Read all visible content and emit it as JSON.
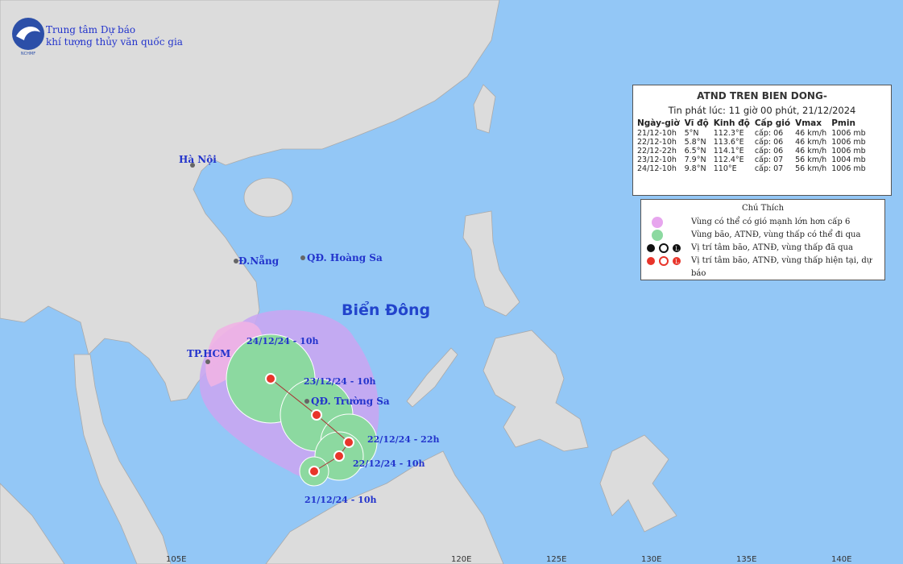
{
  "header": {
    "org_line1": "Trung tâm Dự báo",
    "org_line2": "khí tượng thủy văn quốc gia",
    "logo": "NCHMF"
  },
  "bulletin": {
    "title": "ATND TREN BIEN DONG-",
    "issued": "Tin phát lúc: 11 giờ 00 phút, 21/12/2024",
    "columns": [
      "Ngày-giờ",
      "Vĩ độ",
      "Kinh độ",
      "Cấp gió",
      "Vmax",
      "Pmin"
    ],
    "rows": [
      [
        "21/12-10h",
        "5°N",
        "112.3°E",
        "cấp: 06",
        "46 km/h",
        "1006 mb"
      ],
      [
        "22/12-10h",
        "5.8°N",
        "113.6°E",
        "cấp: 06",
        "46 km/h",
        "1006 mb"
      ],
      [
        "22/12-22h",
        "6.5°N",
        "114.1°E",
        "cấp: 06",
        "46 km/h",
        "1006 mb"
      ],
      [
        "23/12-10h",
        "7.9°N",
        "112.4°E",
        "cấp: 07",
        "56 km/h",
        "1004 mb"
      ],
      [
        "24/12-10h",
        "9.8°N",
        "110°E",
        "cấp: 07",
        "56 km/h",
        "1006 mb"
      ]
    ]
  },
  "legend": {
    "title": "Chú Thích",
    "items": [
      "Vùng có thể có gió mạnh lớn hơn cấp 6",
      "Vùng bão, ATNĐ, vùng thấp có thể đi qua",
      "Vị trí tâm bão, ATNĐ, vùng thấp đã qua",
      "Vị trí tâm bão, ATNĐ, vùng thấp hiện tại, dự báo"
    ]
  },
  "places": [
    "Hà Nội",
    "Đ.Nẵng",
    "QĐ. Hoàng Sa",
    "TP.HCM",
    "QĐ. Trường Sa"
  ],
  "sea_label": "Biển Đông",
  "track_labels": [
    "21/12/24 - 10h",
    "22/12/24 - 10h",
    "22/12/24 - 22h",
    "23/12/24 - 10h",
    "24/12/24 - 10h"
  ],
  "longitude_labels": [
    "105E",
    "120E",
    "125E",
    "130E",
    "135E",
    "140E"
  ]
}
